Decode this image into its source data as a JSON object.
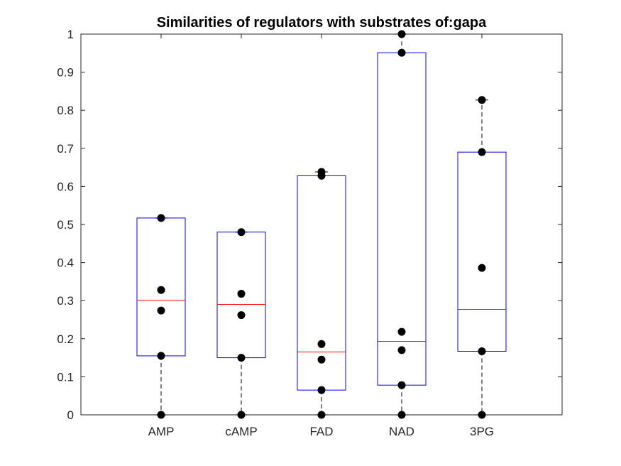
{
  "chart_data": {
    "type": "box",
    "title": "Similarities of regulators with substrates of:gapa",
    "xlabel": "",
    "ylabel": "",
    "categories": [
      "AMP",
      "cAMP",
      "FAD",
      "NAD",
      "3PG"
    ],
    "ylim": [
      0,
      1
    ],
    "yticks": [
      0,
      0.1,
      0.2,
      0.3,
      0.4,
      0.5,
      0.6,
      0.7,
      0.8,
      0.9,
      1
    ],
    "ytick_labels": [
      "0",
      "0.1",
      "0.2",
      "0.3",
      "0.4",
      "0.5",
      "0.6",
      "0.7",
      "0.8",
      "0.9",
      "1"
    ],
    "grid": false,
    "boxes": [
      {
        "category": "AMP",
        "whisker_low": 0,
        "q1": 0.155,
        "median": 0.301,
        "q3": 0.517,
        "whisker_high": 0.517,
        "points": [
          0,
          0.155,
          0.274,
          0.328,
          0.517
        ]
      },
      {
        "category": "cAMP",
        "whisker_low": 0,
        "q1": 0.15,
        "median": 0.29,
        "q3": 0.48,
        "whisker_high": 0.48,
        "points": [
          0,
          0.15,
          0.262,
          0.318,
          0.48
        ]
      },
      {
        "category": "FAD",
        "whisker_low": 0,
        "q1": 0.065,
        "median": 0.165,
        "q3": 0.628,
        "whisker_high": 0.638,
        "points": [
          0,
          0.065,
          0.145,
          0.186,
          0.628,
          0.638
        ]
      },
      {
        "category": "NAD",
        "whisker_low": 0,
        "q1": 0.078,
        "median": 0.193,
        "q3": 0.951,
        "whisker_high": 1.0,
        "points": [
          0,
          0.078,
          0.17,
          0.218,
          0.951,
          1.0
        ]
      },
      {
        "category": "3PG",
        "whisker_low": 0,
        "q1": 0.167,
        "median": 0.277,
        "q3": 0.69,
        "whisker_high": 0.827,
        "points": [
          0,
          0.167,
          0.386,
          0.69,
          0.827
        ]
      }
    ],
    "colors": {
      "box": "#0000ff",
      "median": "#ff0000",
      "whisker": "#000000",
      "points": "#000000",
      "axes": "#262626"
    }
  }
}
